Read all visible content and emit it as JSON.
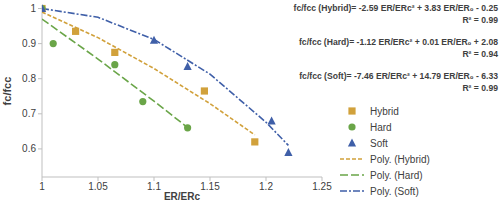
{
  "chart_data": {
    "type": "scatter",
    "x_label": "ER/ERc",
    "y_label": "fc/fcc",
    "xlim": [
      1,
      1.25
    ],
    "xticks": [
      1,
      1.05,
      1.1,
      1.15,
      1.2,
      1.25
    ],
    "ylim": [
      0.52,
      1.01
    ],
    "yticks": [
      0.6,
      0.7,
      0.8,
      0.9,
      1
    ],
    "grid": false,
    "legend": "right",
    "annotations": [
      "fc/fcc (Hybrid)= -2.59 ER/ERc² + 3.83 ER/ER₀ - 0.25",
      "R² = 0.99",
      "fc/fcc (Hard)= -1.12 ER/ERc² + 0.01 ER/ER₀ + 2.08",
      "R² = 0.94",
      "fc/fcc (Soft)= -7.46 ER/ERc² + 14.79 ER/ER₀ - 6.33",
      "R² = 0.99"
    ],
    "series": [
      {
        "name": "Hybrid",
        "type": "scatter",
        "marker": "square",
        "color": "#d1a13b",
        "x": [
          1,
          1.03,
          1.065,
          1.145,
          1.19
        ],
        "values": [
          1,
          0.935,
          0.875,
          0.765,
          0.62
        ]
      },
      {
        "name": "Hard",
        "type": "scatter",
        "marker": "circle",
        "color": "#6aa548",
        "x": [
          1,
          1.01,
          1.065,
          1.09,
          1.13
        ],
        "values": [
          1,
          0.9,
          0.84,
          0.735,
          0.66
        ]
      },
      {
        "name": "Soft",
        "type": "scatter",
        "marker": "triangle",
        "color": "#3f5fa8",
        "x": [
          1,
          1.1,
          1.13,
          1.205,
          1.22
        ],
        "values": [
          1,
          0.91,
          0.835,
          0.68,
          0.59
        ]
      },
      {
        "name": "Poly. (Hybrid)",
        "type": "line",
        "line_style": "dashed",
        "color": "#d1a13b",
        "x": [
          1,
          1.05,
          1.1,
          1.15,
          1.19
        ],
        "values": [
          0.99,
          0.917,
          0.829,
          0.729,
          0.64
        ]
      },
      {
        "name": "Poly. (Hard)",
        "type": "line",
        "line_style": "long-dash",
        "color": "#6aa548",
        "x": [
          1,
          1.05,
          1.1,
          1.13
        ],
        "values": [
          0.97,
          0.856,
          0.736,
          0.661
        ]
      },
      {
        "name": "Poly. (Soft)",
        "type": "line",
        "line_style": "dash-dot",
        "color": "#3f5fa8",
        "x": [
          1,
          1.05,
          1.1,
          1.15,
          1.2,
          1.22
        ],
        "values": [
          1,
          0.975,
          0.912,
          0.813,
          0.676,
          0.61
        ]
      }
    ]
  }
}
